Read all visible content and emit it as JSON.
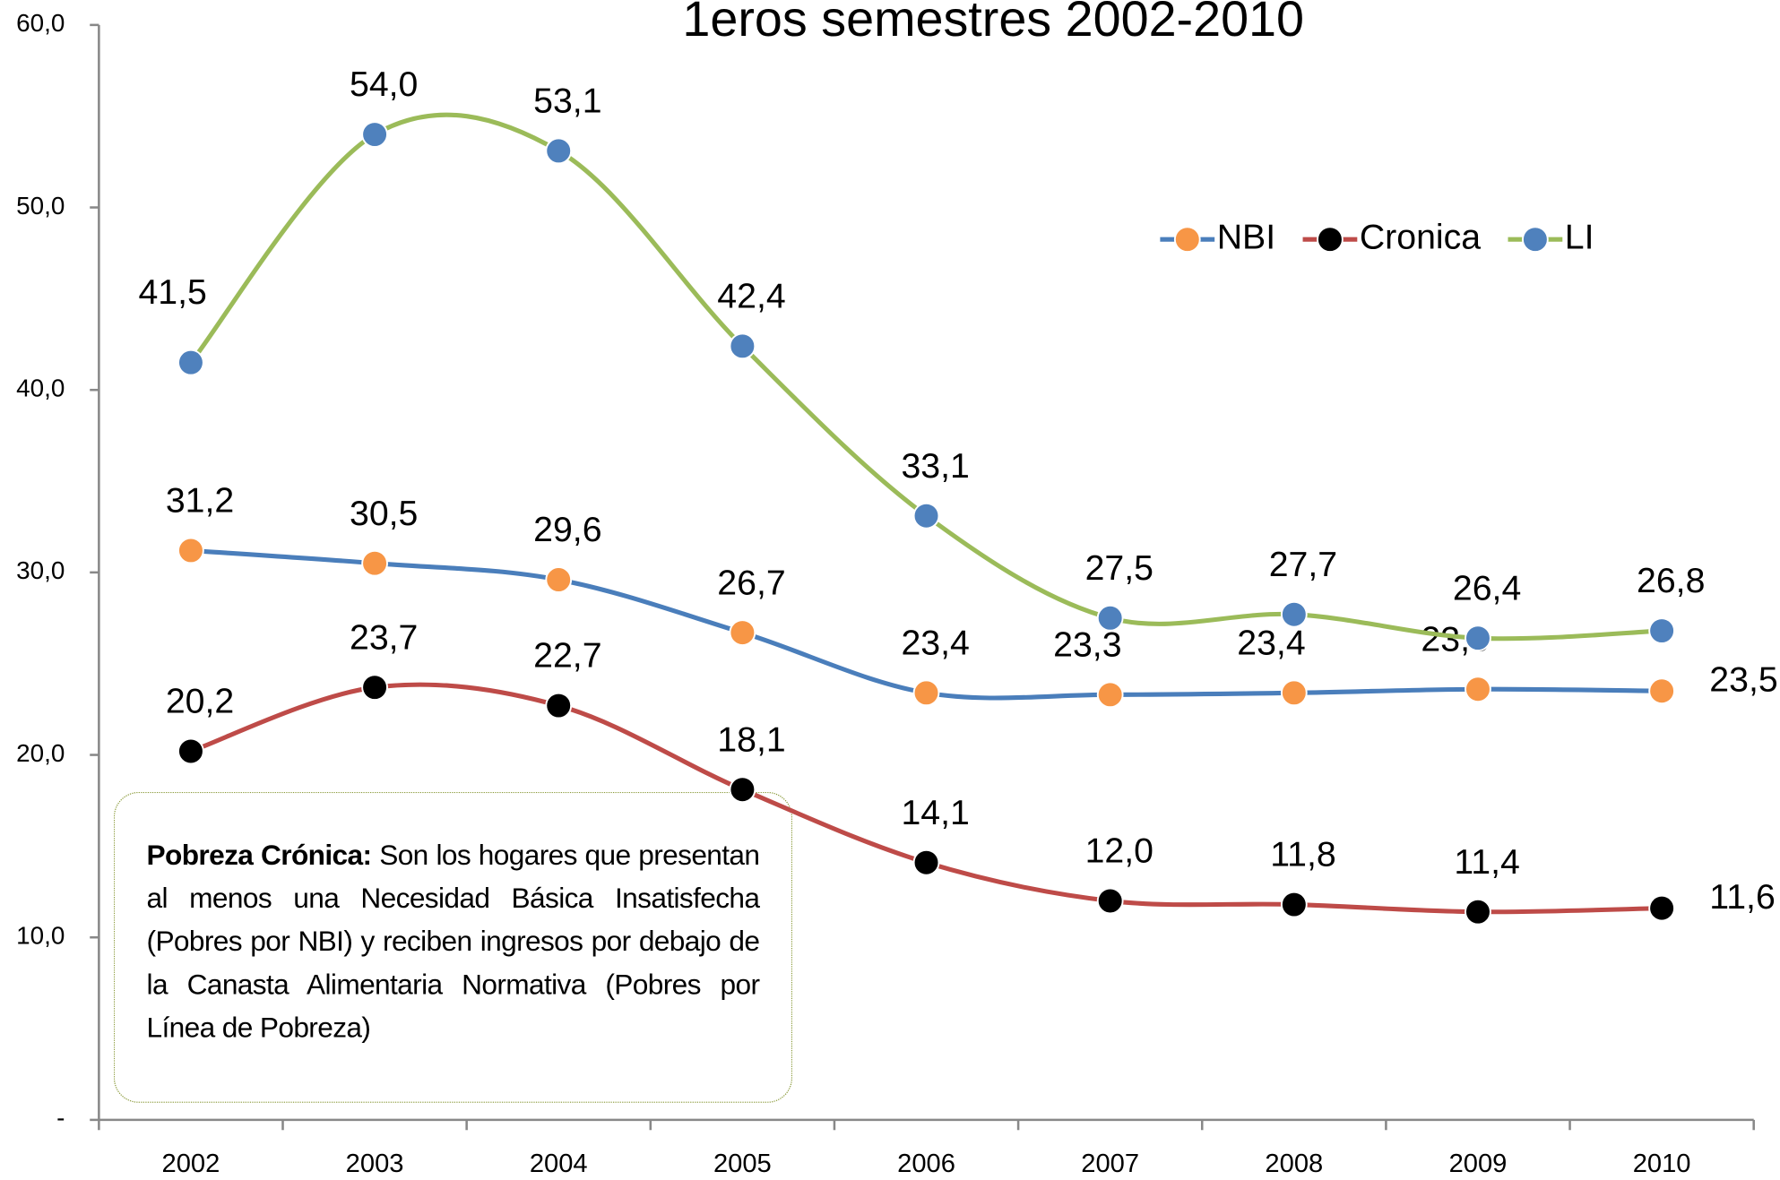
{
  "chart_data": {
    "type": "line",
    "title": "1eros semestres 2002-2010",
    "categories": [
      "2002",
      "2003",
      "2004",
      "2005",
      "2006",
      "2007",
      "2008",
      "2009",
      "2010"
    ],
    "series": [
      {
        "name": "NBI",
        "color": "#4a7ebb",
        "marker_color": "#f79646",
        "values": [
          31.2,
          30.5,
          29.6,
          26.7,
          23.4,
          23.3,
          23.4,
          23.6,
          23.5
        ],
        "value_labels": [
          "31,2",
          "30,5",
          "29,6",
          "26,7",
          "23,4",
          "23,3",
          "23,4",
          "23,6",
          "23,5"
        ]
      },
      {
        "name": "Cronica",
        "color": "#be4b48",
        "marker_color": "#000000",
        "values": [
          20.2,
          23.7,
          22.7,
          18.1,
          14.1,
          12.0,
          11.8,
          11.4,
          11.6
        ],
        "value_labels": [
          "20,2",
          "23,7",
          "22,7",
          "18,1",
          "14,1",
          "12,0",
          "11,8",
          "11,4",
          "11,6"
        ]
      },
      {
        "name": "LI",
        "color": "#9bbb59",
        "marker_color": "#4f81bd",
        "values": [
          41.5,
          54.0,
          53.1,
          42.4,
          33.1,
          27.5,
          27.7,
          26.4,
          26.8
        ],
        "value_labels": [
          "41,5",
          "54,0",
          "53,1",
          "42,4",
          "33,1",
          "27,5",
          "27,7",
          "26,4",
          "26,8"
        ]
      }
    ],
    "ylim": [
      0,
      60
    ],
    "yticks": [
      {
        "value": 0,
        "label": "-"
      },
      {
        "value": 10,
        "label": "10,0"
      },
      {
        "value": 20,
        "label": "20,0"
      },
      {
        "value": 30,
        "label": "30,0"
      },
      {
        "value": 40,
        "label": "40,0"
      },
      {
        "value": 50,
        "label": "50,0"
      },
      {
        "value": 60,
        "label": "60,0"
      }
    ],
    "grid": false,
    "legend": "top-right",
    "annotation": {
      "bold": "Pobreza Crónica:",
      "text": "Son los hogares que presentan al menos una Necesidad Básica Insatisfecha (Pobres por NBI) y reciben ingresos por debajo de la Canasta Alimentaria Normativa (Pobres por Línea de Pobreza)"
    }
  }
}
